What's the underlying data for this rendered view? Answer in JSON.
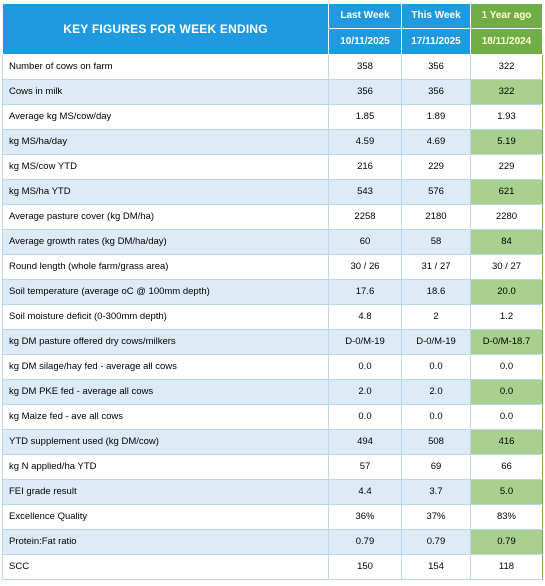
{
  "header": {
    "title": "KEY FIGURES FOR WEEK ENDING",
    "columns": [
      {
        "label": "Last Week",
        "date": "10/11/2025"
      },
      {
        "label": "This Week",
        "date": "17/11/2025"
      },
      {
        "label": "1 Year ago",
        "date": "18/11/2024"
      }
    ]
  },
  "colors": {
    "header_blue": "#1f9ae0",
    "header_green": "#70ad47",
    "row_alt_blue": "#ddebf7",
    "row_alt_green": "#a9d08e"
  },
  "rows": [
    {
      "label": "Number of cows on farm",
      "last": "358",
      "this": "356",
      "ago": "322"
    },
    {
      "label": "Cows in milk",
      "last": "356",
      "this": "356",
      "ago": "322"
    },
    {
      "label": "Average kg MS/cow/day",
      "last": "1.85",
      "this": "1.89",
      "ago": "1.93"
    },
    {
      "label": "kg MS/ha/day",
      "last": "4.59",
      "this": "4.69",
      "ago": "5.19"
    },
    {
      "label": "kg MS/cow YTD",
      "last": "216",
      "this": "229",
      "ago": "229"
    },
    {
      "label": "kg MS/ha YTD",
      "last": "543",
      "this": "576",
      "ago": "621"
    },
    {
      "label": "Average pasture cover (kg DM/ha)",
      "last": "2258",
      "this": "2180",
      "ago": "2280"
    },
    {
      "label": "Average growth rates (kg DM/ha/day)",
      "last": "60",
      "this": "58",
      "ago": "84"
    },
    {
      "label": "Round length (whole farm/grass area)",
      "last": "30 / 26",
      "this": "31 / 27",
      "ago": "30 / 27"
    },
    {
      "label": "Soil temperature (average oC  @ 100mm depth)",
      "last": "17.6",
      "this": "18.6",
      "ago": "20.0"
    },
    {
      "label": "Soil moisture deficit (0-300mm depth)",
      "last": "4.8",
      "this": "2",
      "ago": "1.2"
    },
    {
      "label": "kg DM pasture offered dry cows/milkers",
      "last": "D-0/M-19",
      "this": "D-0/M-19",
      "ago": "D-0/M-18.7"
    },
    {
      "label": "kg DM silage/hay fed - average all cows",
      "last": "0.0",
      "this": "0.0",
      "ago": "0.0"
    },
    {
      "label": "kg DM PKE fed - average all cows",
      "last": "2.0",
      "this": "2.0",
      "ago": "0.0"
    },
    {
      "label": "kg Maize fed - ave all cows",
      "last": "0.0",
      "this": "0.0",
      "ago": "0.0"
    },
    {
      "label": "YTD supplement used (kg DM/cow)",
      "last": "494",
      "this": "508",
      "ago": "416"
    },
    {
      "label": "kg N applied/ha YTD",
      "last": "57",
      "this": "69",
      "ago": "66"
    },
    {
      "label": "FEI grade result",
      "last": "4.4",
      "this": "3.7",
      "ago": "5.0"
    },
    {
      "label": "Excellence Quality",
      "last": "36%",
      "this": "37%",
      "ago": "83%"
    },
    {
      "label": "Protein:Fat ratio",
      "last": "0.79",
      "this": "0.79",
      "ago": "0.79"
    },
    {
      "label": "SCC",
      "last": "150",
      "this": "154",
      "ago": "118"
    }
  ]
}
